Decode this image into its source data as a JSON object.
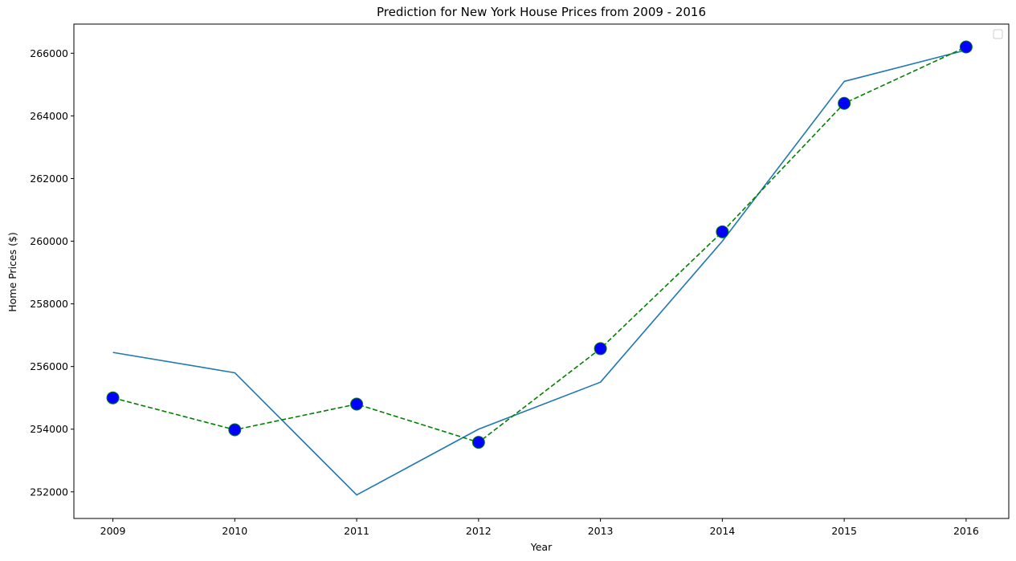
{
  "chart_data": {
    "type": "line",
    "title": "Prediction for New York House Prices from 2009 - 2016",
    "xlabel": "Year",
    "ylabel": "Home Prices ($)",
    "x": [
      2009,
      2010,
      2011,
      2012,
      2013,
      2014,
      2015,
      2016
    ],
    "x_tick_labels": [
      "2009",
      "2010",
      "2011",
      "2012",
      "2013",
      "2014",
      "2015",
      "2016"
    ],
    "y_ticks": [
      252000,
      254000,
      256000,
      258000,
      260000,
      262000,
      264000,
      266000
    ],
    "y_tick_labels": [
      "252000",
      "254000",
      "256000",
      "258000",
      "260000",
      "262000",
      "264000",
      "266000"
    ],
    "xlim": [
      2008.68,
      2016.35
    ],
    "ylim": [
      251150,
      266930
    ],
    "grid": false,
    "legend": "top-right, empty",
    "series": [
      {
        "values": [
          256450,
          255800,
          251900,
          254000,
          255500,
          260000,
          265100,
          266100
        ],
        "color": "#1f77b4",
        "style": "solid"
      },
      {
        "values": [
          255000,
          253980,
          254800,
          253580,
          256570,
          260300,
          264400,
          266200
        ],
        "color": "#008000",
        "style": "dashed",
        "marker": "circle",
        "marker_fill": "#0000ff",
        "marker_edge": "#008000"
      }
    ]
  }
}
